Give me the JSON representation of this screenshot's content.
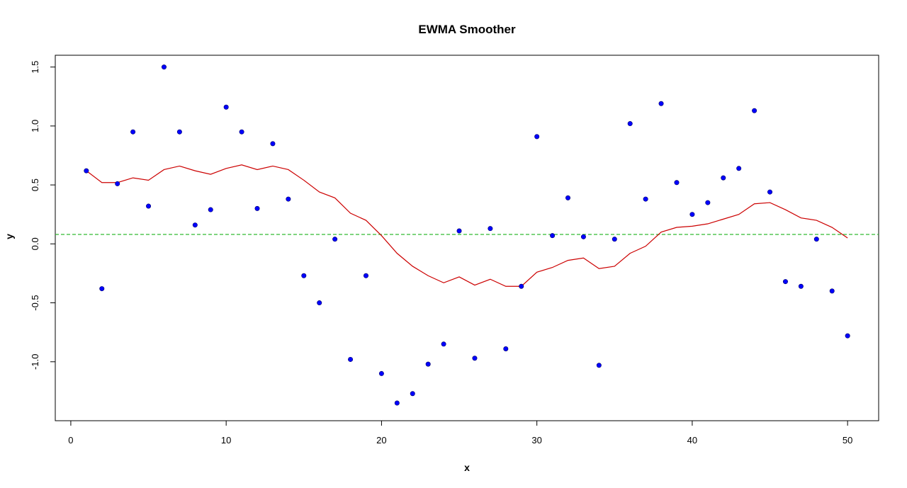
{
  "chart_data": {
    "type": "scatter",
    "title": "EWMA Smoother",
    "xlabel": "x",
    "ylabel": "y",
    "xlim": [
      -1,
      52
    ],
    "ylim": [
      -1.5,
      1.6
    ],
    "x_ticks": [
      0,
      10,
      20,
      30,
      40,
      50
    ],
    "y_ticks": [
      -1.0,
      -0.5,
      0.0,
      0.5,
      1.0,
      1.5
    ],
    "y_tick_labels": [
      "-1.0",
      "-0.5",
      "0.0",
      "0.5",
      "1.0",
      "1.5"
    ],
    "grid": false,
    "points": {
      "color": "#0000ff",
      "x": [
        1,
        2,
        3,
        4,
        5,
        6,
        7,
        8,
        9,
        10,
        11,
        12,
        13,
        14,
        15,
        16,
        17,
        18,
        19,
        20,
        21,
        22,
        23,
        24,
        25,
        26,
        27,
        28,
        29,
        30,
        31,
        32,
        33,
        34,
        35,
        36,
        37,
        38,
        39,
        40,
        41,
        42,
        43,
        44,
        45,
        46,
        47,
        48,
        49,
        50
      ],
      "y": [
        0.62,
        -0.38,
        0.51,
        0.95,
        0.32,
        1.5,
        0.95,
        0.16,
        0.29,
        1.16,
        0.95,
        0.3,
        0.85,
        0.38,
        -0.27,
        -0.5,
        0.04,
        -0.98,
        -0.27,
        -1.1,
        -1.35,
        -1.27,
        -1.02,
        -0.85,
        0.11,
        -0.97,
        0.13,
        -0.89,
        -0.36,
        0.91,
        0.07,
        0.39,
        0.06,
        -1.03,
        0.04,
        1.02,
        0.38,
        1.19,
        0.52,
        0.25,
        0.35,
        0.56,
        0.64,
        1.13,
        0.44,
        -0.32,
        -0.36,
        0.04,
        -0.4,
        -0.78
      ]
    },
    "smoother": {
      "color": "#cc0000",
      "x": [
        1,
        2,
        3,
        4,
        5,
        6,
        7,
        8,
        9,
        10,
        11,
        12,
        13,
        14,
        15,
        16,
        17,
        18,
        19,
        20,
        21,
        22,
        23,
        24,
        25,
        26,
        27,
        28,
        29,
        30,
        31,
        32,
        33,
        34,
        35,
        36,
        37,
        38,
        39,
        40,
        41,
        42,
        43,
        44,
        45,
        46,
        47,
        48,
        49,
        50
      ],
      "y": [
        0.62,
        0.52,
        0.52,
        0.56,
        0.54,
        0.63,
        0.66,
        0.62,
        0.59,
        0.64,
        0.67,
        0.63,
        0.66,
        0.63,
        0.54,
        0.44,
        0.39,
        0.26,
        0.2,
        0.07,
        -0.08,
        -0.19,
        -0.27,
        -0.33,
        -0.28,
        -0.35,
        -0.3,
        -0.36,
        -0.36,
        -0.24,
        -0.2,
        -0.14,
        -0.12,
        -0.21,
        -0.19,
        -0.08,
        -0.02,
        0.1,
        0.14,
        0.15,
        0.17,
        0.21,
        0.25,
        0.34,
        0.35,
        0.29,
        0.22,
        0.2,
        0.14,
        0.05
      ]
    },
    "hline": {
      "y": 0.08,
      "color": "#33bb33",
      "style": "dashed"
    }
  }
}
